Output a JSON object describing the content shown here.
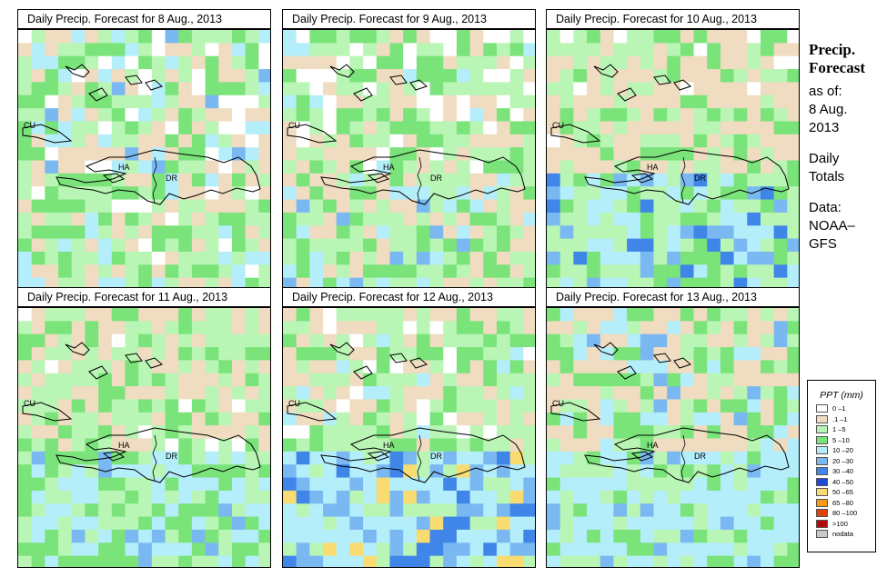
{
  "panels": [
    {
      "title": "Daily Precip. Forecast for  8 Aug., 2013",
      "seed": 11,
      "profile": "a"
    },
    {
      "title": "Daily Precip. Forecast for  9 Aug., 2013",
      "seed": 23,
      "profile": "b"
    },
    {
      "title": "Daily Precip. Forecast for  10 Aug., 2013",
      "seed": 37,
      "profile": "c"
    },
    {
      "title": "Daily Precip. Forecast for  11 Aug., 2013",
      "seed": 41,
      "profile": "d"
    },
    {
      "title": "Daily Precip. Forecast for  12 Aug., 2013",
      "seed": 53,
      "profile": "e"
    },
    {
      "title": "Daily Precip. Forecast for  13 Aug., 2013",
      "seed": 67,
      "profile": "f"
    }
  ],
  "map_labels": {
    "cuba": "CU",
    "haiti": "HA",
    "dr": "DR"
  },
  "sidebar": {
    "line1": "Precip.",
    "line2": "Forecast",
    "line3": "as of:",
    "line4": "8 Aug.",
    "line5": "2013",
    "line6": "Daily",
    "line7": "Totals",
    "line8": "Data:",
    "line9": "NOAA–",
    "line10": "GFS"
  },
  "legend": {
    "title": "PPT (mm)",
    "items": [
      {
        "label": "0 –1",
        "color": "#ffffff"
      },
      {
        "label": ".1 –1",
        "color": "#f0dcc0"
      },
      {
        "label": "1 –5",
        "color": "#b9f5b4"
      },
      {
        "label": "5 –10",
        "color": "#7ae37a"
      },
      {
        "label": "10 –20",
        "color": "#b4eefa"
      },
      {
        "label": "20 –30",
        "color": "#7ab8f2"
      },
      {
        "label": "30 –40",
        "color": "#3f86e8"
      },
      {
        "label": "40 –50",
        "color": "#1f49d6"
      },
      {
        "label": "50 –65",
        "color": "#f8dc72"
      },
      {
        "label": "65 –80",
        "color": "#f79a10"
      },
      {
        "label": "80 –100",
        "color": "#e0400a"
      },
      {
        "label": ">100",
        "color": "#b30a0a"
      },
      {
        "label": "nodata",
        "color": "#c8c8c8"
      }
    ]
  }
}
